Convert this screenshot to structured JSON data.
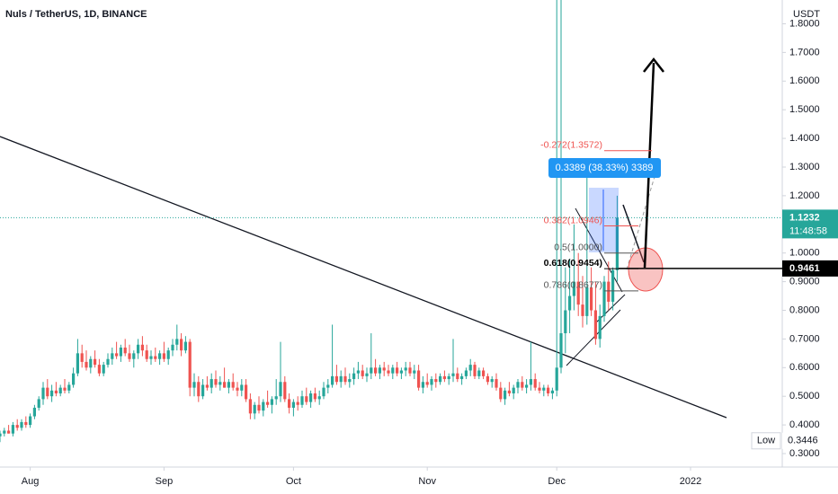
{
  "chart_data": {
    "type": "candlestick",
    "title": "Nuls / TetherUS, 1D, BINANCE",
    "currency": "USDT",
    "up_color": "#26a69a",
    "down_color": "#ef5350",
    "xlim": [
      0,
      181.25
    ],
    "xticks": [
      {
        "value": 7,
        "label": "Aug"
      },
      {
        "value": 38,
        "label": "Sep"
      },
      {
        "value": 68,
        "label": "Oct"
      },
      {
        "value": 99,
        "label": "Nov"
      },
      {
        "value": 129,
        "label": "Dec"
      },
      {
        "value": 160,
        "label": "2022"
      }
    ],
    "ylim": [
      0.253,
      1.883
    ],
    "yticks": [
      {
        "value": 0.3,
        "label": "0.3000"
      },
      {
        "value": 0.4,
        "label": "0.4000"
      },
      {
        "value": 0.5,
        "label": "0.5000"
      },
      {
        "value": 0.6,
        "label": "0.6000"
      },
      {
        "value": 0.7,
        "label": "0.7000"
      },
      {
        "value": 0.8,
        "label": "0.8000"
      },
      {
        "value": 0.9,
        "label": "0.9000"
      },
      {
        "value": 1.0,
        "label": "1.0000"
      },
      {
        "value": 1.2,
        "label": "1.2000"
      },
      {
        "value": 1.3,
        "label": "1.3000"
      },
      {
        "value": 1.4,
        "label": "1.4000"
      },
      {
        "value": 1.5,
        "label": "1.5000"
      },
      {
        "value": 1.6,
        "label": "1.6000"
      },
      {
        "value": 1.7,
        "label": "1.7000"
      },
      {
        "value": 1.8,
        "label": "1.8000"
      }
    ],
    "candles": [
      [
        0.36,
        0.38,
        0.34,
        0.37
      ],
      [
        0.37,
        0.39,
        0.36,
        0.38
      ],
      [
        0.38,
        0.4,
        0.37,
        0.37
      ],
      [
        0.37,
        0.41,
        0.36,
        0.4
      ],
      [
        0.4,
        0.42,
        0.38,
        0.39
      ],
      [
        0.39,
        0.42,
        0.38,
        0.41
      ],
      [
        0.41,
        0.43,
        0.39,
        0.4
      ],
      [
        0.4,
        0.44,
        0.39,
        0.43
      ],
      [
        0.43,
        0.47,
        0.42,
        0.46
      ],
      [
        0.46,
        0.5,
        0.45,
        0.49
      ],
      [
        0.49,
        0.55,
        0.47,
        0.53
      ],
      [
        0.53,
        0.56,
        0.49,
        0.5
      ],
      [
        0.5,
        0.54,
        0.48,
        0.52
      ],
      [
        0.52,
        0.55,
        0.5,
        0.51
      ],
      [
        0.51,
        0.54,
        0.5,
        0.53
      ],
      [
        0.53,
        0.56,
        0.51,
        0.52
      ],
      [
        0.52,
        0.55,
        0.51,
        0.54
      ],
      [
        0.54,
        0.6,
        0.53,
        0.58
      ],
      [
        0.58,
        0.7,
        0.57,
        0.65
      ],
      [
        0.65,
        0.68,
        0.6,
        0.62
      ],
      [
        0.62,
        0.66,
        0.59,
        0.6
      ],
      [
        0.6,
        0.64,
        0.58,
        0.63
      ],
      [
        0.63,
        0.66,
        0.6,
        0.61
      ],
      [
        0.61,
        0.63,
        0.57,
        0.58
      ],
      [
        0.58,
        0.62,
        0.57,
        0.61
      ],
      [
        0.61,
        0.65,
        0.6,
        0.63
      ],
      [
        0.63,
        0.67,
        0.61,
        0.65
      ],
      [
        0.65,
        0.69,
        0.63,
        0.64
      ],
      [
        0.64,
        0.68,
        0.62,
        0.67
      ],
      [
        0.67,
        0.7,
        0.64,
        0.65
      ],
      [
        0.65,
        0.68,
        0.62,
        0.63
      ],
      [
        0.63,
        0.66,
        0.6,
        0.65
      ],
      [
        0.65,
        0.7,
        0.63,
        0.68
      ],
      [
        0.68,
        0.71,
        0.64,
        0.66
      ],
      [
        0.66,
        0.68,
        0.62,
        0.63
      ],
      [
        0.63,
        0.66,
        0.61,
        0.64
      ],
      [
        0.64,
        0.67,
        0.62,
        0.63
      ],
      [
        0.63,
        0.66,
        0.61,
        0.65
      ],
      [
        0.65,
        0.69,
        0.62,
        0.63
      ],
      [
        0.63,
        0.67,
        0.61,
        0.66
      ],
      [
        0.66,
        0.7,
        0.64,
        0.68
      ],
      [
        0.68,
        0.75,
        0.66,
        0.7
      ],
      [
        0.7,
        0.72,
        0.64,
        0.66
      ],
      [
        0.66,
        0.71,
        0.65,
        0.69
      ],
      [
        0.69,
        0.7,
        0.5,
        0.53
      ],
      [
        0.53,
        0.58,
        0.5,
        0.55
      ],
      [
        0.55,
        0.57,
        0.48,
        0.5
      ],
      [
        0.5,
        0.56,
        0.49,
        0.54
      ],
      [
        0.54,
        0.57,
        0.52,
        0.53
      ],
      [
        0.53,
        0.58,
        0.51,
        0.56
      ],
      [
        0.56,
        0.59,
        0.53,
        0.54
      ],
      [
        0.54,
        0.57,
        0.52,
        0.55
      ],
      [
        0.55,
        0.6,
        0.53,
        0.53
      ],
      [
        0.53,
        0.56,
        0.51,
        0.55
      ],
      [
        0.55,
        0.58,
        0.52,
        0.53
      ],
      [
        0.53,
        0.55,
        0.5,
        0.52
      ],
      [
        0.52,
        0.56,
        0.5,
        0.54
      ],
      [
        0.54,
        0.56,
        0.48,
        0.49
      ],
      [
        0.49,
        0.51,
        0.42,
        0.44
      ],
      [
        0.44,
        0.48,
        0.42,
        0.47
      ],
      [
        0.47,
        0.5,
        0.44,
        0.45
      ],
      [
        0.45,
        0.49,
        0.43,
        0.48
      ],
      [
        0.48,
        0.52,
        0.46,
        0.47
      ],
      [
        0.47,
        0.5,
        0.44,
        0.49
      ],
      [
        0.49,
        0.56,
        0.47,
        0.5
      ],
      [
        0.5,
        0.69,
        0.48,
        0.55
      ],
      [
        0.55,
        0.57,
        0.48,
        0.49
      ],
      [
        0.49,
        0.51,
        0.44,
        0.46
      ],
      [
        0.46,
        0.49,
        0.43,
        0.48
      ],
      [
        0.48,
        0.5,
        0.45,
        0.47
      ],
      [
        0.47,
        0.52,
        0.46,
        0.5
      ],
      [
        0.5,
        0.53,
        0.47,
        0.48
      ],
      [
        0.48,
        0.52,
        0.46,
        0.51
      ],
      [
        0.51,
        0.53,
        0.48,
        0.49
      ],
      [
        0.49,
        0.52,
        0.47,
        0.5
      ],
      [
        0.5,
        0.55,
        0.49,
        0.53
      ],
      [
        0.53,
        0.56,
        0.51,
        0.54
      ],
      [
        0.54,
        0.75,
        0.53,
        0.57
      ],
      [
        0.57,
        0.61,
        0.54,
        0.55
      ],
      [
        0.55,
        0.59,
        0.53,
        0.57
      ],
      [
        0.57,
        0.6,
        0.54,
        0.55
      ],
      [
        0.55,
        0.58,
        0.53,
        0.56
      ],
      [
        0.56,
        0.6,
        0.54,
        0.58
      ],
      [
        0.58,
        0.62,
        0.56,
        0.59
      ],
      [
        0.59,
        0.61,
        0.56,
        0.57
      ],
      [
        0.57,
        0.6,
        0.55,
        0.58
      ],
      [
        0.58,
        0.72,
        0.56,
        0.6
      ],
      [
        0.6,
        0.63,
        0.57,
        0.58
      ],
      [
        0.58,
        0.61,
        0.56,
        0.6
      ],
      [
        0.6,
        0.62,
        0.57,
        0.59
      ],
      [
        0.59,
        0.61,
        0.57,
        0.58
      ],
      [
        0.58,
        0.61,
        0.56,
        0.6
      ],
      [
        0.6,
        0.62,
        0.57,
        0.58
      ],
      [
        0.58,
        0.6,
        0.56,
        0.59
      ],
      [
        0.59,
        0.62,
        0.57,
        0.6
      ],
      [
        0.6,
        0.62,
        0.57,
        0.58
      ],
      [
        0.58,
        0.61,
        0.56,
        0.59
      ],
      [
        0.59,
        0.61,
        0.52,
        0.53
      ],
      [
        0.53,
        0.57,
        0.51,
        0.55
      ],
      [
        0.55,
        0.58,
        0.53,
        0.54
      ],
      [
        0.54,
        0.57,
        0.52,
        0.56
      ],
      [
        0.56,
        0.58,
        0.53,
        0.55
      ],
      [
        0.55,
        0.58,
        0.54,
        0.57
      ],
      [
        0.57,
        0.59,
        0.55,
        0.56
      ],
      [
        0.56,
        0.58,
        0.54,
        0.57
      ],
      [
        0.57,
        0.7,
        0.55,
        0.58
      ],
      [
        0.58,
        0.6,
        0.55,
        0.56
      ],
      [
        0.56,
        0.58,
        0.54,
        0.57
      ],
      [
        0.57,
        0.6,
        0.56,
        0.59
      ],
      [
        0.59,
        0.63,
        0.57,
        0.61
      ],
      [
        0.61,
        0.62,
        0.56,
        0.57
      ],
      [
        0.57,
        0.6,
        0.56,
        0.59
      ],
      [
        0.59,
        0.6,
        0.56,
        0.57
      ],
      [
        0.57,
        0.58,
        0.54,
        0.55
      ],
      [
        0.55,
        0.57,
        0.53,
        0.56
      ],
      [
        0.56,
        0.58,
        0.52,
        0.53
      ],
      [
        0.53,
        0.55,
        0.48,
        0.49
      ],
      [
        0.49,
        0.53,
        0.47,
        0.52
      ],
      [
        0.52,
        0.55,
        0.5,
        0.51
      ],
      [
        0.51,
        0.54,
        0.49,
        0.53
      ],
      [
        0.53,
        0.56,
        0.51,
        0.55
      ],
      [
        0.55,
        0.57,
        0.52,
        0.53
      ],
      [
        0.53,
        0.56,
        0.51,
        0.54
      ],
      [
        0.54,
        0.69,
        0.52,
        0.56
      ],
      [
        0.56,
        0.58,
        0.52,
        0.53
      ],
      [
        0.53,
        0.55,
        0.51,
        0.52
      ],
      [
        0.52,
        0.54,
        0.5,
        0.53
      ],
      [
        0.53,
        0.54,
        0.5,
        0.51
      ],
      [
        0.51,
        0.53,
        0.49,
        0.52
      ],
      [
        0.52,
        1.95,
        0.5,
        0.6
      ],
      [
        0.6,
        1.95,
        0.58,
        0.72
      ],
      [
        0.72,
        0.95,
        0.65,
        0.8
      ],
      [
        0.8,
        0.98,
        0.72,
        0.85
      ],
      [
        0.85,
        1.1,
        0.8,
        0.9
      ],
      [
        0.9,
        1.0,
        0.78,
        0.82
      ],
      [
        0.82,
        0.92,
        0.74,
        0.78
      ],
      [
        0.78,
        1.27,
        0.75,
        0.88
      ],
      [
        0.88,
        0.95,
        0.78,
        0.8
      ],
      [
        0.8,
        0.9,
        0.68,
        0.7
      ],
      [
        0.7,
        0.82,
        0.67,
        0.78
      ],
      [
        0.78,
        0.92,
        0.76,
        0.9
      ],
      [
        0.9,
        0.97,
        0.8,
        0.83
      ],
      [
        0.83,
        0.95,
        0.8,
        0.94
      ],
      [
        0.94,
        1.2,
        0.9,
        1.1232
      ]
    ],
    "last_price": 1.1232,
    "countdown": "11:48:58",
    "horizontal_level": 0.9461,
    "low": {
      "label": "Low",
      "value": 0.3446
    },
    "fib": [
      {
        "label": "-0.272(1.3572)",
        "value": 1.3572,
        "color": "#ef5350"
      },
      {
        "label": "0.382(1.0946)",
        "value": 1.0946,
        "color": "#ef5350"
      },
      {
        "label": "0.5(1.0000)",
        "value": 1.0,
        "color": "#555555"
      },
      {
        "label": "0.618(0.9454)",
        "value": 0.9454,
        "color": "#000000"
      },
      {
        "label": "0.786(0.8677)",
        "value": 0.8677,
        "color": "#555555"
      }
    ],
    "measure_label": "0.3389 (38.33%) 3389"
  }
}
